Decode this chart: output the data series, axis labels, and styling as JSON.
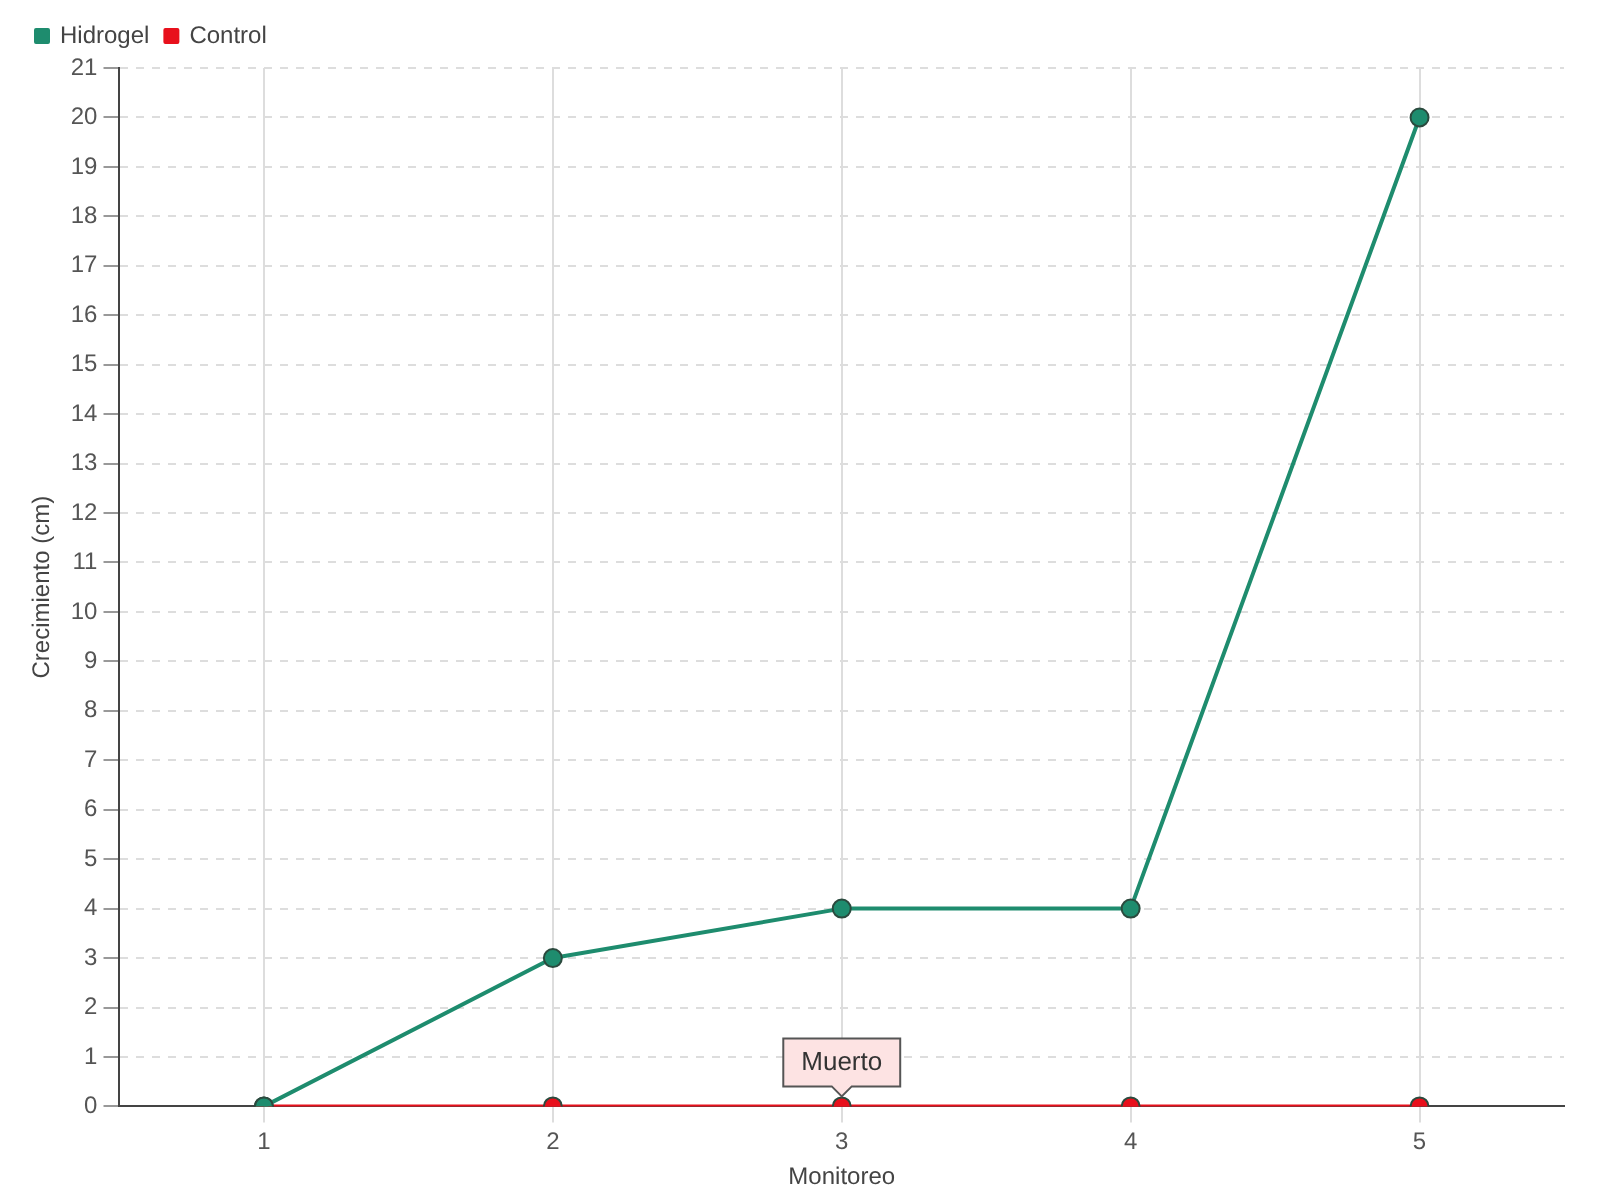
{
  "chart_data": {
    "type": "line",
    "xlabel": "Monitoreo",
    "ylabel": "Crecimiento (cm)",
    "categories": [
      "1",
      "2",
      "3",
      "4",
      "5"
    ],
    "series": [
      {
        "name": "Hidrogel",
        "color": "#1e8c6e",
        "values": [
          0,
          3,
          4,
          4,
          20
        ]
      },
      {
        "name": "Control",
        "color": "#e8101c",
        "values": [
          0,
          0,
          0,
          0,
          0
        ]
      }
    ],
    "ylim": [
      0,
      21
    ],
    "yticks": [
      0,
      1,
      2,
      3,
      4,
      5,
      6,
      7,
      8,
      9,
      10,
      11,
      12,
      13,
      14,
      15,
      16,
      17,
      18,
      19,
      20,
      21
    ],
    "grid": true,
    "legend": "top left",
    "marker": "circle",
    "line_style": "solid",
    "annotations": [
      {
        "text": "Muerto",
        "x": "3",
        "y": 0
      }
    ]
  }
}
